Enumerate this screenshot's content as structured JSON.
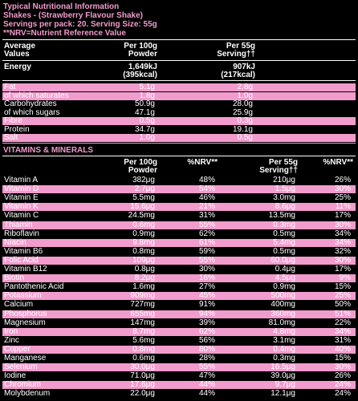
{
  "header": {
    "line1": "Typical Nutritional Information",
    "line2": "Shakes - (Strawberry Flavour Shake)",
    "line3": "Servings per pack: 20. Serving Size: 55g",
    "line4": "**NRV=Nutrient Reference Value"
  },
  "energy_table": {
    "head": {
      "col0a": "Average",
      "col0b": "Values",
      "col1a": "Per 100g",
      "col1b": "Powder",
      "col3a": "Per 55g",
      "col3b": "Serving††"
    },
    "energy": {
      "name": "Energy",
      "kj100": "1,649kJ",
      "kcal100": "(395kcal)",
      "kj55": "907kJ",
      "kcal55": "(217kcal)"
    },
    "rows": [
      {
        "name": "Fat",
        "per100": "5.1g",
        "per55": "2.8g"
      },
      {
        "name": "of which saturates",
        "per100": "1.8g",
        "per55": "1.0g"
      },
      {
        "name": "Carbohydrates",
        "per100": "50.9g",
        "per55": "28.0g"
      },
      {
        "name": "of which sugars",
        "per100": "47.1g",
        "per55": "25.9g"
      },
      {
        "name": "Fibre",
        "per100": "0.5g",
        "per55": "0.3g"
      },
      {
        "name": "Protein",
        "per100": "34.7g",
        "per55": "19.1g"
      },
      {
        "name": "Salt",
        "per100": "1.0g",
        "per55": "0.5g"
      }
    ]
  },
  "vitamins": {
    "title": "VITAMINS & MINERALS",
    "head": {
      "c1a": "Per 100g",
      "c1b": "Powder",
      "c2": "%NRV**",
      "c3a": "Per 55g",
      "c3b": "Serving††",
      "c4": "%NRV**"
    },
    "rows": [
      {
        "name": "Vitamin A",
        "per100": "382μg",
        "nrv100": "48%",
        "per55": "210μg",
        "nrv55": "26%"
      },
      {
        "name": "Vitamin D",
        "per100": "2.7μg",
        "nrv100": "54%",
        "per55": "1.5μg",
        "nrv55": "30%"
      },
      {
        "name": "Vitamin E",
        "per100": "5.5mg",
        "nrv100": "46%",
        "per55": "3.0mg",
        "nrv55": "25%"
      },
      {
        "name": "Vitamin K",
        "per100": "15.6μg",
        "nrv100": "21%",
        "per55": "8.6μg",
        "nrv55": "11%"
      },
      {
        "name": "Vitamin C",
        "per100": "24.5mg",
        "nrv100": "31%",
        "per55": "13.5mg",
        "nrv55": "17%"
      },
      {
        "name": "Thiamin",
        "per100": "0.6mg",
        "nrv100": "55%",
        "per55": "0.3mg",
        "nrv55": "30%"
      },
      {
        "name": "Riboflavin",
        "per100": "0.9mg",
        "nrv100": "62%",
        "per55": "0.5mg",
        "nrv55": "34%"
      },
      {
        "name": "Niacin",
        "per100": "9.8mg",
        "nrv100": "61%",
        "per55": "5.4mg",
        "nrv55": "34%"
      },
      {
        "name": "Vitamin B6",
        "per100": "0.8mg",
        "nrv100": "59%",
        "per55": "0.5mg",
        "nrv55": "32%"
      },
      {
        "name": "Folic Acid",
        "per100": "109μg",
        "nrv100": "55%",
        "per55": "60.0μg",
        "nrv55": "30%"
      },
      {
        "name": "Vitamin B12",
        "per100": "0.8μg",
        "nrv100": "30%",
        "per55": "0.4μg",
        "nrv55": "17%"
      },
      {
        "name": "Biotin",
        "per100": "8.2μg",
        "nrv100": "16%",
        "per55": "4.5μg",
        "nrv55": "9%"
      },
      {
        "name": "Pantothenic Acid",
        "per100": "1.6mg",
        "nrv100": "27%",
        "per55": "0.9mg",
        "nrv55": "15%"
      },
      {
        "name": "Potassium",
        "per100": "909mg",
        "nrv100": "45%",
        "per55": "500mg",
        "nrv55": "25%"
      },
      {
        "name": "Calcium",
        "per100": "727mg",
        "nrv100": "91%",
        "per55": "400mg",
        "nrv55": "50%"
      },
      {
        "name": "Phosphorus",
        "per100": "655mg",
        "nrv100": "94%",
        "per55": "360mg",
        "nrv55": "51%"
      },
      {
        "name": "Magnesium",
        "per100": "147mg",
        "nrv100": "39%",
        "per55": "81.0mg",
        "nrv55": "22%"
      },
      {
        "name": "Iron",
        "per100": "8.7mg",
        "nrv100": "62%",
        "per55": "4.8mg",
        "nrv55": "34%"
      },
      {
        "name": "Zinc",
        "per100": "5.6mg",
        "nrv100": "56%",
        "per55": "3.1mg",
        "nrv55": "31%"
      },
      {
        "name": "Copper",
        "per100": "0.8mg",
        "nrv100": "80%",
        "per55": "0.4mg",
        "nrv55": "40%"
      },
      {
        "name": "Manganese",
        "per100": "0.6mg",
        "nrv100": "28%",
        "per55": "0.3mg",
        "nrv55": "15%"
      },
      {
        "name": "Selenium",
        "per100": "30.0μg",
        "nrv100": "55%",
        "per55": "16.5μg",
        "nrv55": "30%"
      },
      {
        "name": "Iodine",
        "per100": "71.0μg",
        "nrv100": "47%",
        "per55": "39.0μg",
        "nrv55": "26%"
      },
      {
        "name": "Chromium",
        "per100": "17.6μg",
        "nrv100": "44%",
        "per55": "9.7μg",
        "nrv55": "24%"
      },
      {
        "name": "Molybdenum",
        "per100": "22.0μg",
        "nrv100": "44%",
        "per55": "12.1μg",
        "nrv55": "24%"
      }
    ]
  },
  "colors": {
    "highlight": "#f29bcd",
    "background": "#000000",
    "text": "#ffffff"
  }
}
